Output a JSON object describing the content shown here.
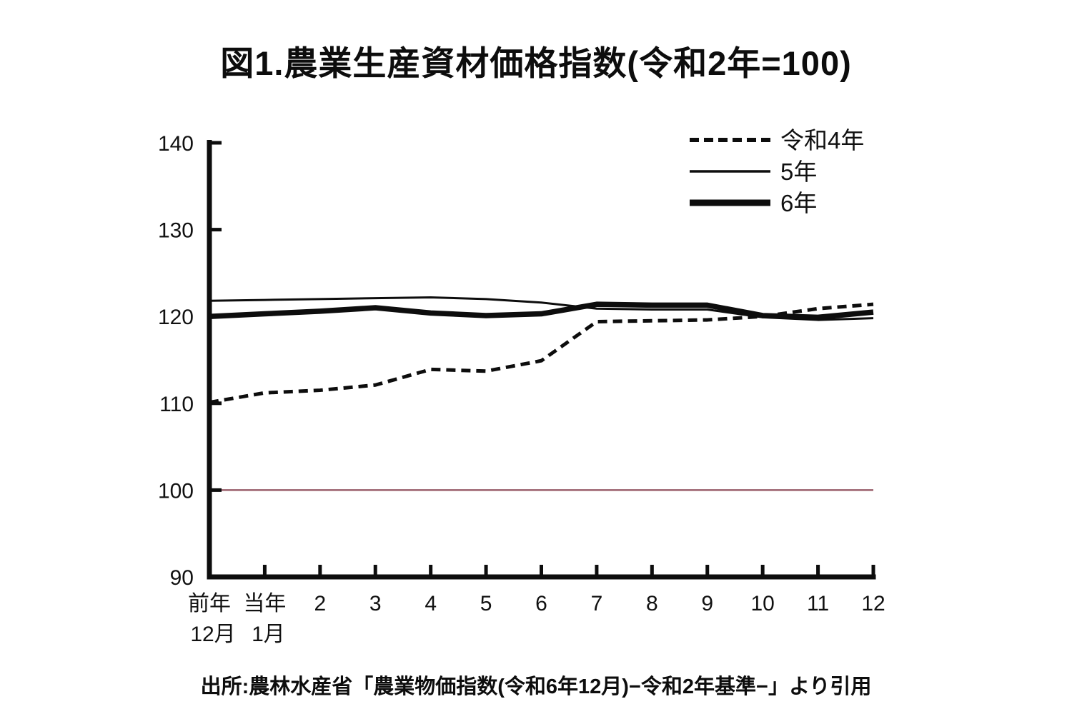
{
  "title": "図1.農業生産資材価格指数(令和2年=100)",
  "source": "出所:農林水産省「農業物価指数(令和6年12月)−令和2年基準−」より引用",
  "colors": {
    "ink": "#0d0d0d",
    "reference_line": "#9a5f6b"
  },
  "chart_data": {
    "type": "line",
    "title": "図1.農業生産資材価格指数(令和2年=100)",
    "xlabel": "",
    "ylabel": "",
    "ylim": [
      90,
      140
    ],
    "yticks": [
      90,
      100,
      110,
      120,
      130,
      140
    ],
    "grid": false,
    "legend_position": "top-right",
    "x_labels_line1": [
      "前年",
      "当年",
      "2",
      "3",
      "4",
      "5",
      "6",
      "7",
      "8",
      "9",
      "10",
      "11",
      "12"
    ],
    "x_labels_line2": [
      "12月",
      "1月",
      "",
      "",
      "",
      "",
      "",
      "",
      "",
      "",
      "",
      "",
      ""
    ],
    "reference_line": {
      "value": 100,
      "color": "#9a5f6b"
    },
    "series": [
      {
        "name": "令和4年",
        "style": "dashed",
        "values": [
          110.1,
          111.2,
          111.5,
          112.1,
          113.9,
          113.7,
          114.9,
          119.4,
          119.5,
          119.6,
          120.0,
          120.9,
          121.4
        ]
      },
      {
        "name": "5年",
        "style": "thin",
        "values": [
          121.8,
          121.9,
          122.0,
          122.1,
          122.2,
          122.0,
          121.6,
          120.9,
          120.8,
          120.8,
          119.9,
          119.6,
          119.8
        ]
      },
      {
        "name": "6年",
        "style": "thick",
        "values": [
          120.0,
          120.3,
          120.6,
          121.0,
          120.4,
          120.1,
          120.3,
          121.4,
          121.3,
          121.3,
          120.1,
          119.9,
          120.5
        ]
      }
    ]
  }
}
